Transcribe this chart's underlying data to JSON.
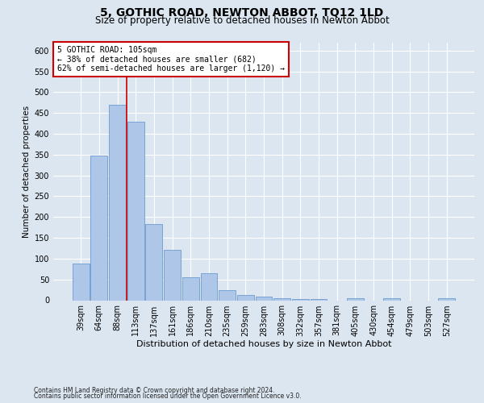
{
  "title": "5, GOTHIC ROAD, NEWTON ABBOT, TQ12 1LD",
  "subtitle": "Size of property relative to detached houses in Newton Abbot",
  "xlabel": "Distribution of detached houses by size in Newton Abbot",
  "ylabel": "Number of detached properties",
  "annotation_line1": "5 GOTHIC ROAD: 105sqm",
  "annotation_line2": "← 38% of detached houses are smaller (682)",
  "annotation_line3": "62% of semi-detached houses are larger (1,120) →",
  "footnote1": "Contains HM Land Registry data © Crown copyright and database right 2024.",
  "footnote2": "Contains public sector information licensed under the Open Government Licence v3.0.",
  "bar_labels": [
    "39sqm",
    "64sqm",
    "88sqm",
    "113sqm",
    "137sqm",
    "161sqm",
    "186sqm",
    "210sqm",
    "235sqm",
    "259sqm",
    "283sqm",
    "308sqm",
    "332sqm",
    "357sqm",
    "381sqm",
    "405sqm",
    "430sqm",
    "454sqm",
    "479sqm",
    "503sqm",
    "527sqm"
  ],
  "bar_values": [
    88,
    348,
    470,
    430,
    183,
    122,
    55,
    65,
    25,
    13,
    8,
    5,
    3,
    3,
    0,
    5,
    0,
    4,
    0,
    0,
    4
  ],
  "bar_color": "#aec6e8",
  "bar_edge_color": "#5b8fc9",
  "red_line_x": 2.5,
  "ylim": [
    0,
    620
  ],
  "yticks": [
    0,
    50,
    100,
    150,
    200,
    250,
    300,
    350,
    400,
    450,
    500,
    550,
    600
  ],
  "background_color": "#dce6f1",
  "plot_bg_color": "#dce6f1",
  "grid_color": "#ffffff",
  "annotation_box_color": "#ffffff",
  "annotation_box_edge_color": "#cc0000",
  "red_line_color": "#cc0000",
  "title_fontsize": 10,
  "subtitle_fontsize": 8.5,
  "xlabel_fontsize": 8,
  "ylabel_fontsize": 7.5,
  "tick_fontsize": 7,
  "annotation_fontsize": 7,
  "footnote_fontsize": 5.5
}
